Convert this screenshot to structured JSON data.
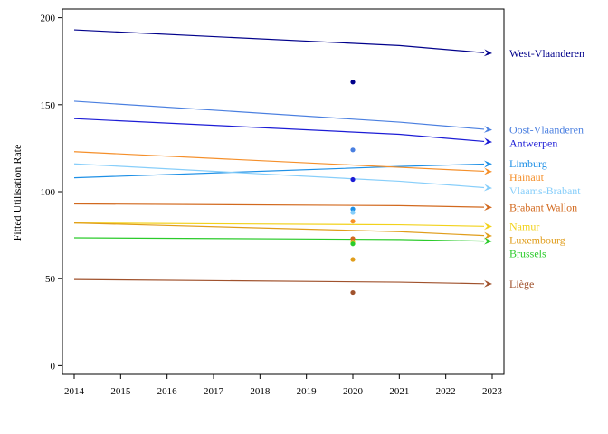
{
  "chart_data": {
    "type": "line",
    "title": "",
    "xlabel": "",
    "ylabel": "Fitted Utilisation Rate",
    "x": [
      2014,
      2015,
      2016,
      2017,
      2018,
      2019,
      2020,
      2021,
      2022,
      2023
    ],
    "xlim": [
      2014,
      2023
    ],
    "ylim": [
      -5,
      205
    ],
    "yticks": [
      0,
      50,
      100,
      150,
      200
    ],
    "grid": false,
    "legend": "right-of-lines",
    "series": [
      {
        "name": "West-Vlaanderen",
        "color": "#00008b",
        "x": [
          2014,
          2021,
          2023
        ],
        "y": [
          193,
          184,
          179.5
        ],
        "point": [
          2020,
          163
        ]
      },
      {
        "name": "Oost-Vlaanderen",
        "color": "#4a7fe0",
        "x": [
          2014,
          2021,
          2023
        ],
        "y": [
          152,
          140,
          135.5
        ],
        "point": [
          2020,
          124
        ]
      },
      {
        "name": "Antwerpen",
        "color": "#1c1cd6",
        "x": [
          2014,
          2021,
          2023
        ],
        "y": [
          142,
          133,
          128.5
        ],
        "point": [
          2020,
          107
        ]
      },
      {
        "name": "Limburg",
        "color": "#1e90e6",
        "x": [
          2014,
          2021,
          2023
        ],
        "y": [
          108,
          114.5,
          116
        ],
        "point": [
          2020,
          90
        ]
      },
      {
        "name": "Hainaut",
        "color": "#f58f2a",
        "x": [
          2014,
          2021,
          2023
        ],
        "y": [
          123,
          114,
          111.5
        ],
        "point": [
          2020,
          83
        ]
      },
      {
        "name": "Vlaams-Brabant",
        "color": "#87cefa",
        "x": [
          2014,
          2021,
          2023
        ],
        "y": [
          116,
          106,
          102
        ],
        "point": [
          2020,
          88
        ]
      },
      {
        "name": "Brabant Wallon",
        "color": "#d2691e",
        "x": [
          2014,
          2021,
          2023
        ],
        "y": [
          93,
          92,
          91
        ],
        "point": [
          2020,
          73
        ]
      },
      {
        "name": "Namur",
        "color": "#f2d21b",
        "x": [
          2014,
          2021,
          2023
        ],
        "y": [
          82,
          81,
          80
        ],
        "point": [
          2020,
          71
        ]
      },
      {
        "name": "Luxembourg",
        "color": "#e09d1b",
        "x": [
          2014,
          2021,
          2023
        ],
        "y": [
          82,
          77,
          74.5
        ],
        "point": [
          2020,
          61
        ]
      },
      {
        "name": "Brussels",
        "color": "#2bcb2b",
        "x": [
          2014,
          2021,
          2023
        ],
        "y": [
          73.5,
          72.5,
          71.5
        ],
        "point": [
          2020,
          70
        ]
      },
      {
        "name": "Liège",
        "color": "#a0522d",
        "x": [
          2014,
          2021,
          2023
        ],
        "y": [
          49.5,
          48,
          47
        ],
        "point": [
          2020,
          42
        ]
      }
    ]
  }
}
